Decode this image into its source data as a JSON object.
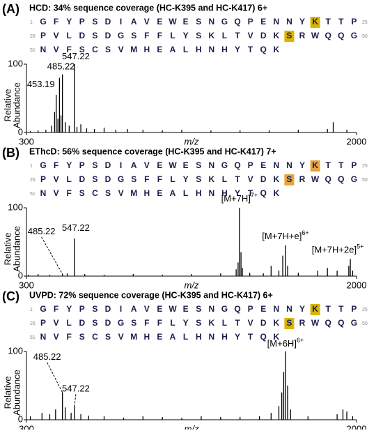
{
  "chart_data": [
    {
      "type": "spectrum",
      "panel": "(A)",
      "title": "HCD: 34% sequence coverage (HC-K395 and HC-K417) 6+",
      "sequence": [
        {
          "start": 1,
          "residues": [
            "G",
            "F",
            "Y",
            "P",
            "S",
            "D",
            "I",
            "A",
            "V",
            "E",
            "W",
            "E",
            "S",
            "N",
            "G",
            "Q",
            "P",
            "E",
            "N",
            "N",
            "Y",
            "K",
            "T",
            "T",
            "P"
          ],
          "end": 25
        },
        {
          "start": 26,
          "residues": [
            "P",
            "V",
            "L",
            "D",
            "S",
            "D",
            "G",
            "S",
            "F",
            "F",
            "L",
            "Y",
            "S",
            "K",
            "L",
            "T",
            "V",
            "D",
            "K",
            "S",
            "R",
            "W",
            "Q",
            "Q",
            "G"
          ],
          "end": 50
        },
        {
          "start": 51,
          "residues": [
            "N",
            "V",
            "F",
            "S",
            "C",
            "S",
            "V",
            "M",
            "H",
            "E",
            "A",
            "L",
            "H",
            "N",
            "H",
            "Y",
            "T",
            "Q",
            "K"
          ]
        }
      ],
      "highlighted_residues": [
        22,
        45
      ],
      "highlight_color": "#d9b400",
      "x": [
        320,
        360,
        400,
        430,
        445,
        453.19,
        462,
        470,
        478,
        485.22,
        500,
        520,
        547.22,
        560,
        580,
        610,
        650,
        700,
        760,
        820,
        900,
        1000,
        1100,
        1250,
        1400,
        1550,
        1700,
        1850,
        1880,
        1950
      ],
      "values": [
        2,
        3,
        4,
        10,
        30,
        55,
        20,
        80,
        25,
        85,
        15,
        10,
        100,
        8,
        12,
        6,
        5,
        7,
        4,
        5,
        4,
        3,
        4,
        3,
        3,
        3,
        4,
        5,
        15,
        4
      ],
      "color": "#000000",
      "xlim": [
        300,
        2000
      ],
      "xticks": [
        300,
        2000
      ],
      "ylim": [
        0,
        100
      ],
      "yticks": [
        0,
        100
      ],
      "xlabel": "m/z",
      "ylabel": [
        "Relative",
        "Abundance"
      ],
      "annotations": [
        {
          "text": "453.19",
          "x": 453.19,
          "y": 55
        },
        {
          "text": "485.22",
          "x": 485.22,
          "y": 85
        },
        {
          "text": "547.22",
          "x": 547.22,
          "y": 100
        }
      ]
    },
    {
      "type": "spectrum",
      "panel": "(B)",
      "title": "EThcD: 56% sequence coverage (HC-K395 and HC-K417) 7+",
      "sequence": [
        {
          "start": 1,
          "residues": [
            "G",
            "F",
            "Y",
            "P",
            "S",
            "D",
            "I",
            "A",
            "V",
            "E",
            "W",
            "E",
            "S",
            "N",
            "G",
            "Q",
            "P",
            "E",
            "N",
            "N",
            "Y",
            "K",
            "T",
            "T",
            "P"
          ],
          "end": 25
        },
        {
          "start": 26,
          "residues": [
            "P",
            "V",
            "L",
            "D",
            "S",
            "D",
            "G",
            "S",
            "F",
            "F",
            "L",
            "Y",
            "S",
            "K",
            "L",
            "T",
            "V",
            "D",
            "K",
            "S",
            "R",
            "W",
            "Q",
            "Q",
            "G"
          ],
          "end": 50
        },
        {
          "start": 51,
          "residues": [
            "N",
            "V",
            "F",
            "S",
            "C",
            "S",
            "V",
            "M",
            "H",
            "E",
            "A",
            "L",
            "H",
            "N",
            "H",
            "Y",
            "T",
            "Q",
            "K"
          ]
        }
      ],
      "highlighted_residues": [
        22,
        45
      ],
      "highlight_color": "#e8a33a",
      "x": [
        310,
        360,
        420,
        485.22,
        510,
        547.22,
        600,
        700,
        850,
        1000,
        1150,
        1300,
        1380,
        1390,
        1397,
        1405,
        1412,
        1450,
        1520,
        1560,
        1600,
        1620,
        1634,
        1645,
        1700,
        1800,
        1850,
        1900,
        1960,
        1968,
        1980
      ],
      "values": [
        2,
        3,
        2,
        3,
        4,
        55,
        3,
        2,
        3,
        2,
        3,
        4,
        10,
        20,
        100,
        35,
        12,
        5,
        4,
        15,
        8,
        30,
        45,
        15,
        5,
        8,
        12,
        8,
        15,
        25,
        8
      ],
      "color": "#000000",
      "xlim": [
        300,
        2000
      ],
      "xticks": [
        300,
        2000
      ],
      "ylim": [
        0,
        100
      ],
      "yticks": [
        0,
        100
      ],
      "xlabel": "m/z",
      "ylabel": [
        "Relative",
        "Abundance"
      ],
      "annotations": [
        {
          "text": "485.22",
          "x": 485.22,
          "y": 3
        },
        {
          "text": "547.22",
          "x": 547.22,
          "y": 55
        },
        {
          "text": "[M+7H]",
          "sup": "7+",
          "x": 1397,
          "y": 100
        },
        {
          "text": "[M+7H+e]",
          "sup": "6+",
          "x": 1634,
          "y": 45
        },
        {
          "text": "[M+7H+2e]",
          "sup": "5+",
          "x": 1968,
          "y": 25
        }
      ]
    },
    {
      "type": "spectrum",
      "panel": "(C)",
      "title": "UVPD: 72% sequence coverage (HC-K395 and HC-K417) 6+",
      "sequence": [
        {
          "start": 1,
          "residues": [
            "G",
            "F",
            "Y",
            "P",
            "S",
            "D",
            "I",
            "A",
            "V",
            "E",
            "W",
            "E",
            "S",
            "N",
            "G",
            "Q",
            "P",
            "E",
            "N",
            "N",
            "Y",
            "K",
            "T",
            "T",
            "P"
          ],
          "end": 25
        },
        {
          "start": 26,
          "residues": [
            "P",
            "V",
            "L",
            "D",
            "S",
            "D",
            "G",
            "S",
            "F",
            "F",
            "L",
            "Y",
            "S",
            "K",
            "L",
            "T",
            "V",
            "D",
            "K",
            "S",
            "R",
            "W",
            "Q",
            "Q",
            "G"
          ],
          "end": 50
        },
        {
          "start": 51,
          "residues": [
            "N",
            "V",
            "F",
            "S",
            "C",
            "S",
            "V",
            "M",
            "H",
            "E",
            "A",
            "L",
            "H",
            "N",
            "H",
            "Y",
            "T",
            "Q",
            "K"
          ]
        }
      ],
      "highlighted_residues": [
        22,
        45
      ],
      "highlight_color": "#d9b400",
      "x": [
        320,
        380,
        420,
        450,
        485.22,
        500,
        530,
        547.22,
        580,
        620,
        700,
        800,
        900,
        1000,
        1100,
        1200,
        1300,
        1400,
        1500,
        1560,
        1600,
        1615,
        1625,
        1634,
        1645,
        1660,
        1750,
        1900,
        1930,
        1950,
        1980
      ],
      "values": [
        5,
        10,
        8,
        15,
        40,
        18,
        10,
        20,
        8,
        6,
        5,
        3,
        5,
        4,
        3,
        5,
        4,
        4,
        5,
        10,
        20,
        40,
        70,
        100,
        50,
        15,
        5,
        8,
        15,
        12,
        5
      ],
      "color": "#000000",
      "xlim": [
        300,
        2000
      ],
      "xticks": [
        300,
        2000
      ],
      "ylim": [
        0,
        100
      ],
      "yticks": [
        0,
        100
      ],
      "xlabel": "m/z",
      "ylabel": [
        "Relative",
        "Abundance"
      ],
      "annotations": [
        {
          "text": "485.22",
          "x": 485.22,
          "y": 40
        },
        {
          "text": "547.22",
          "x": 547.22,
          "y": 20
        },
        {
          "text": "[M+6H]",
          "sup": "6+",
          "x": 1634,
          "y": 100
        }
      ]
    }
  ]
}
